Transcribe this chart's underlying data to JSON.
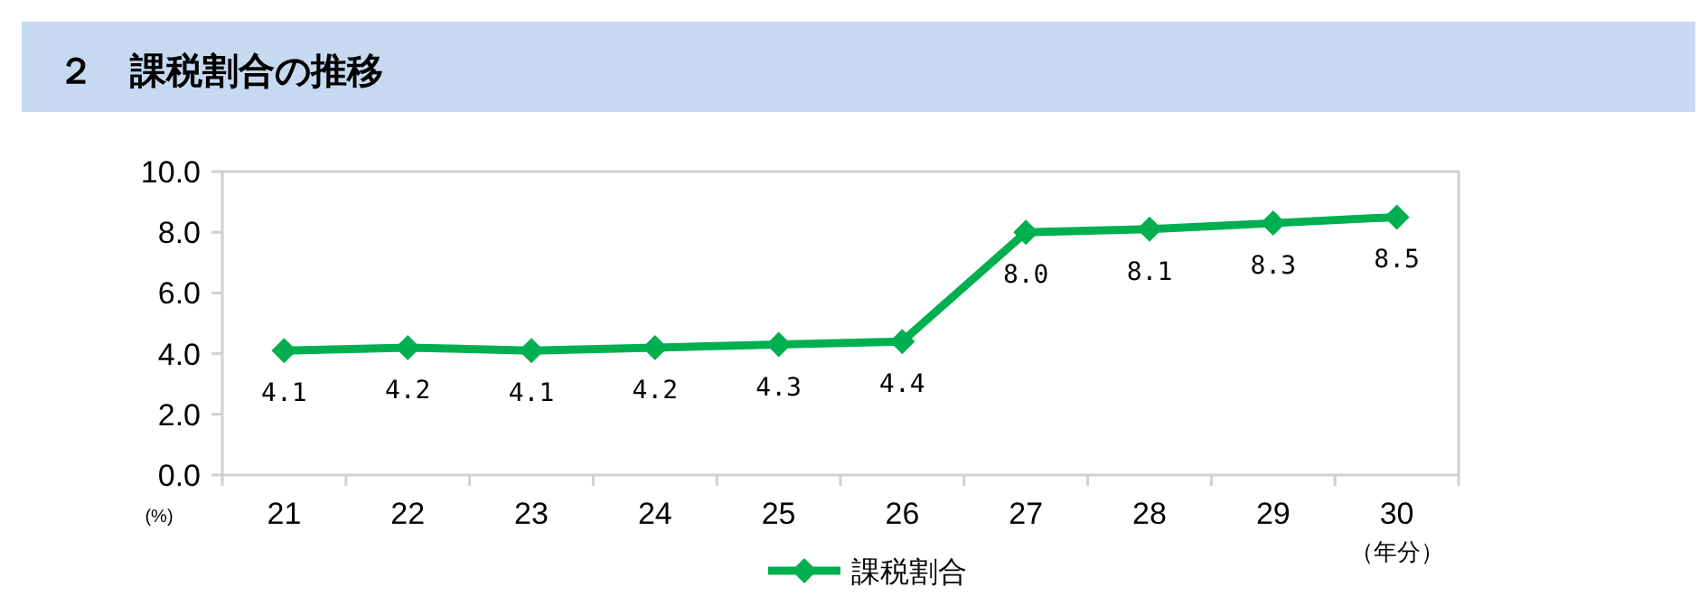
{
  "chart_data": {
    "type": "line",
    "title": "２　課税割合の推移",
    "ylabel": "(%)",
    "xlabel": "（年分）",
    "categories": [
      "21",
      "22",
      "23",
      "24",
      "25",
      "26",
      "27",
      "28",
      "29",
      "30"
    ],
    "series": [
      {
        "name": "課税割合",
        "color": "#00b050",
        "values": [
          4.1,
          4.2,
          4.1,
          4.2,
          4.3,
          4.4,
          8.0,
          8.1,
          8.3,
          8.5
        ],
        "value_labels": [
          "4.1",
          "4.2",
          "4.1",
          "4.2",
          "4.3",
          "4.4",
          "8.0",
          "8.1",
          "8.3",
          "8.5"
        ]
      }
    ],
    "ylim": [
      0,
      10
    ],
    "yticks": [
      {
        "value": 0,
        "label": "0.0"
      },
      {
        "value": 2,
        "label": "2.0"
      },
      {
        "value": 4,
        "label": "4.0"
      },
      {
        "value": 6,
        "label": "6.0"
      },
      {
        "value": 8,
        "label": "8.0"
      },
      {
        "value": 10,
        "label": "10.0"
      }
    ],
    "grid": false,
    "legend": "bottom",
    "marker": "diamond",
    "line_style": "solid"
  }
}
